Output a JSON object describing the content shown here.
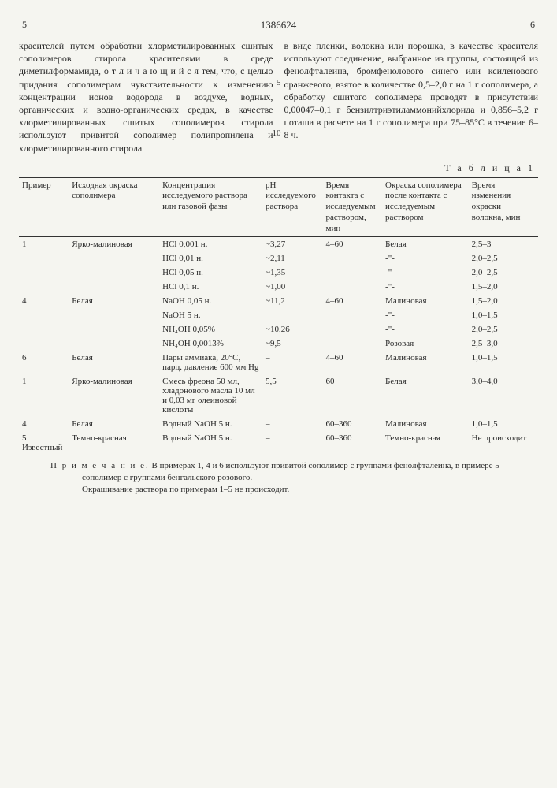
{
  "doc_number": "1386624",
  "col_left_num": "5",
  "col_right_num": "6",
  "line_marker_5": "5",
  "line_marker_10": "10",
  "col_left_text": "красителей путем обработки хлорметилированных сшитых сополимеров стирола красителями в среде диметилформамида,  о т л и ч а ю щ и й с я  тем, что, с целью придания сополимерам чувствительности к изменению концентрации ионов водорода в воздухе, водных, органических и водно-органических средах, в качестве хлорметилированных сшитых сополимеров стирола используют привитой сополимер полипропилена и хлорметилированного стирола",
  "col_right_text": "в виде пленки, волокна или порошка, в качестве красителя используют соединение, выбранное из группы, состоящей из фенолфталеина, бромфенолового синего или ксиленового оранжевого, взятое в количестве 0,5–2,0 г на 1 г сополимера, а обработку сшитого сополимера проводят в присутствии 0,00047–0,1 г бензилтриэтиламмонийхлорида и 0,856–5,2 г поташа в расчете на 1 г сополимера при 75–85°С в течение 6–8 ч.",
  "table_caption": "Т а б л и ц а  1",
  "headers": {
    "h1": "Пример",
    "h2": "Исходная окраска сополимера",
    "h3": "Концентрация исследуемого раствора или газовой фазы",
    "h4": "pH исследуемого раствора",
    "h5": "Время контакта с исследуемым раствором, мин",
    "h6": "Окраска сополимера после контакта с исследуемым раствором",
    "h7": "Время изменения окраски волокна, мин"
  },
  "rows": [
    {
      "c1": "1",
      "c2": "Ярко-малиновая",
      "c3": "HCl 0,001 н.",
      "c4": "~3,27",
      "c5": "4–60",
      "c6": "Белая",
      "c7": "2,5–3"
    },
    {
      "c1": "",
      "c2": "",
      "c3": "HCl 0,01 н.",
      "c4": "~2,11",
      "c5": "",
      "c6": "-\"-",
      "c7": "2,0–2,5"
    },
    {
      "c1": "",
      "c2": "",
      "c3": "HCl 0,05 н.",
      "c4": "~1,35",
      "c5": "",
      "c6": "-\"-",
      "c7": "2,0–2,5"
    },
    {
      "c1": "",
      "c2": "",
      "c3": "HCl 0,1 н.",
      "c4": "~1,00",
      "c5": "",
      "c6": "-\"-",
      "c7": "1,5–2,0"
    },
    {
      "c1": "4",
      "c2": "Белая",
      "c3": "NaOH 0,05 н.",
      "c4": "~11,2",
      "c5": "4–60",
      "c6": "Малиновая",
      "c7": "1,5–2,0"
    },
    {
      "c1": "",
      "c2": "",
      "c3": "NaOH 5 н.",
      "c4": "",
      "c5": "",
      "c6": "-\"-",
      "c7": "1,0–1,5"
    },
    {
      "c1": "",
      "c2": "",
      "c3": "NH₄OH 0,05%",
      "c4": "~10,26",
      "c5": "",
      "c6": "-\"-",
      "c7": "2,0–2,5"
    },
    {
      "c1": "",
      "c2": "",
      "c3": "NH₄OH 0,0013%",
      "c4": "~9,5",
      "c5": "",
      "c6": "Розовая",
      "c7": "2,5–3,0"
    },
    {
      "c1": "6",
      "c2": "Белая",
      "c3": "Пары аммиака, 20°С, парц. давление 600 мм Hg",
      "c4": "–",
      "c5": "4–60",
      "c6": "Малиновая",
      "c7": "1,0–1,5"
    },
    {
      "c1": "1",
      "c2": "Ярко-малиновая",
      "c3": "Смесь фреона 50 мл, хладонового масла 10 мл и 0,03 мг олеиновой кислоты",
      "c4": "5,5",
      "c5": "60",
      "c6": "Белая",
      "c7": "3,0–4,0"
    },
    {
      "c1": "4",
      "c2": "Белая",
      "c3": "Водный NaOH 5 н.",
      "c4": "–",
      "c5": "60–360",
      "c6": "Малиновая",
      "c7": "1,0–1,5"
    },
    {
      "c1": "5 Известный",
      "c2": "Темно-красная",
      "c3": "Водный NaOH 5 н.",
      "c4": "–",
      "c5": "60–360",
      "c6": "Темно-красная",
      "c7": "Не происходит"
    }
  ],
  "note_label": "П р и м е ч а н и е.",
  "note_text": "В примерах 1, 4 и 6 используют привитой сополимер с группами фенолфталеина, в примере 5 – сополимер с группами бенгальского розового.",
  "note2_text": "Окрашивание раствора по примерам 1–5 не происходит."
}
